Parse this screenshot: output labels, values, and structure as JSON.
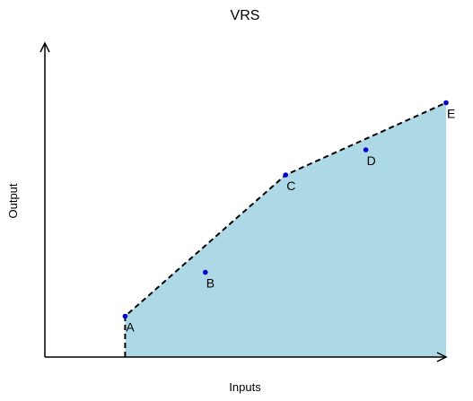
{
  "chart_data": {
    "type": "area",
    "title": "VRS",
    "xlabel": "Inputs",
    "ylabel": "Output",
    "axis_ticks": false,
    "grid": false,
    "legend": "none",
    "xlim": [
      0,
      10
    ],
    "ylim": [
      0,
      10
    ],
    "points": [
      {
        "label": "A",
        "x": 2.0,
        "y": 1.3
      },
      {
        "label": "B",
        "x": 4.0,
        "y": 2.7
      },
      {
        "label": "C",
        "x": 6.0,
        "y": 5.8
      },
      {
        "label": "D",
        "x": 8.0,
        "y": 6.6
      },
      {
        "label": "E",
        "x": 10.0,
        "y": 8.1
      }
    ],
    "frontier": [
      "A",
      "C",
      "E"
    ],
    "frontier_style": "dashed",
    "colors": {
      "area_fill": "#add8e6",
      "point": "#0000cc",
      "frontier": "#000000",
      "axis": "#000000"
    }
  }
}
